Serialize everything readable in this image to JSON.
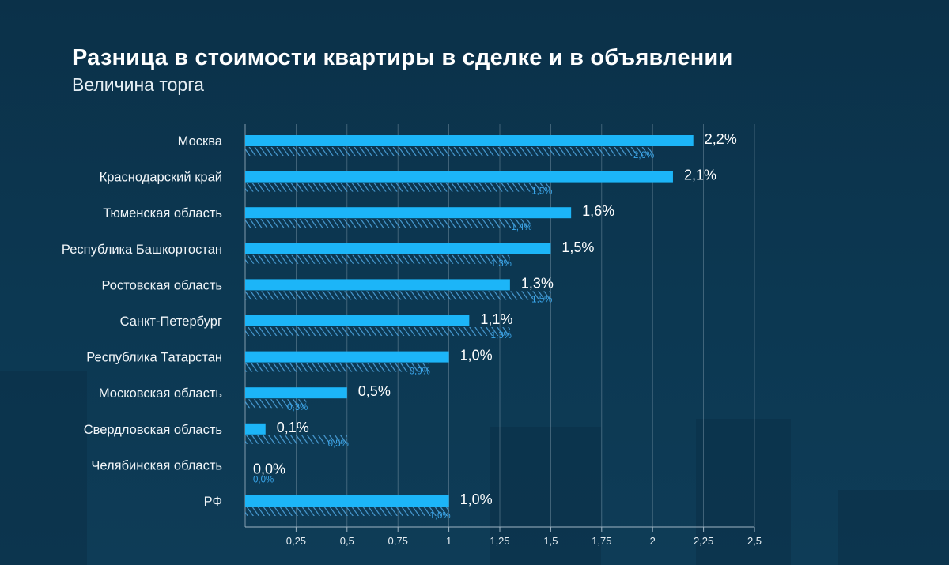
{
  "title": "Разница в стоимости квартиры в сделке и в объявлении",
  "subtitle": "Величина торга",
  "colors": {
    "background": "#0c3550",
    "bar": "#1cb5f8",
    "hatch": "#4a9fd8",
    "prev_label": "#3aa7ec",
    "grid": "#9fb4c3",
    "text": "#ffffff"
  },
  "chart_data": {
    "type": "bar",
    "orientation": "horizontal",
    "title": "Разница в стоимости квартиры в сделке и в объявлении",
    "subtitle": "Величина торга",
    "categories": [
      "Москва",
      "Краснодарский край",
      "Тюменская область",
      "Республика Башкортостан",
      "Ростовская область",
      "Санкт-Петербург",
      "Республика Татарстан",
      "Московская область",
      "Свердловская область",
      "Челябинская область",
      "РФ"
    ],
    "series": [
      {
        "style": "solid",
        "values": [
          2.2,
          2.1,
          1.6,
          1.5,
          1.3,
          1.1,
          1.0,
          0.5,
          0.1,
          0.0,
          1.0
        ],
        "labels": [
          "2,2%",
          "2,1%",
          "1,6%",
          "1,5%",
          "1,3%",
          "1,1%",
          "1,0%",
          "0,5%",
          "0,1%",
          "0,0%",
          "1,0%"
        ]
      },
      {
        "style": "hatched",
        "values": [
          2.0,
          1.5,
          1.4,
          1.3,
          1.5,
          1.3,
          0.9,
          0.3,
          0.5,
          0.0,
          1.0
        ],
        "labels": [
          "2,0%",
          "1,5%",
          "1,4%",
          "1,3%",
          "1,5%",
          "1,3%",
          "0,9%",
          "0,3%",
          "0,5%",
          "0,0%",
          "1,0%"
        ]
      }
    ],
    "xlim": [
      0,
      2.5
    ],
    "xticks": [
      0.25,
      0.5,
      0.75,
      1,
      1.25,
      1.5,
      1.75,
      2,
      2.25,
      2.5
    ],
    "xtick_labels": [
      "0,25",
      "0,5",
      "0,75",
      "1",
      "1,25",
      "1,5",
      "1,75",
      "2",
      "2,25",
      "2,5"
    ],
    "grid": "vertical"
  }
}
